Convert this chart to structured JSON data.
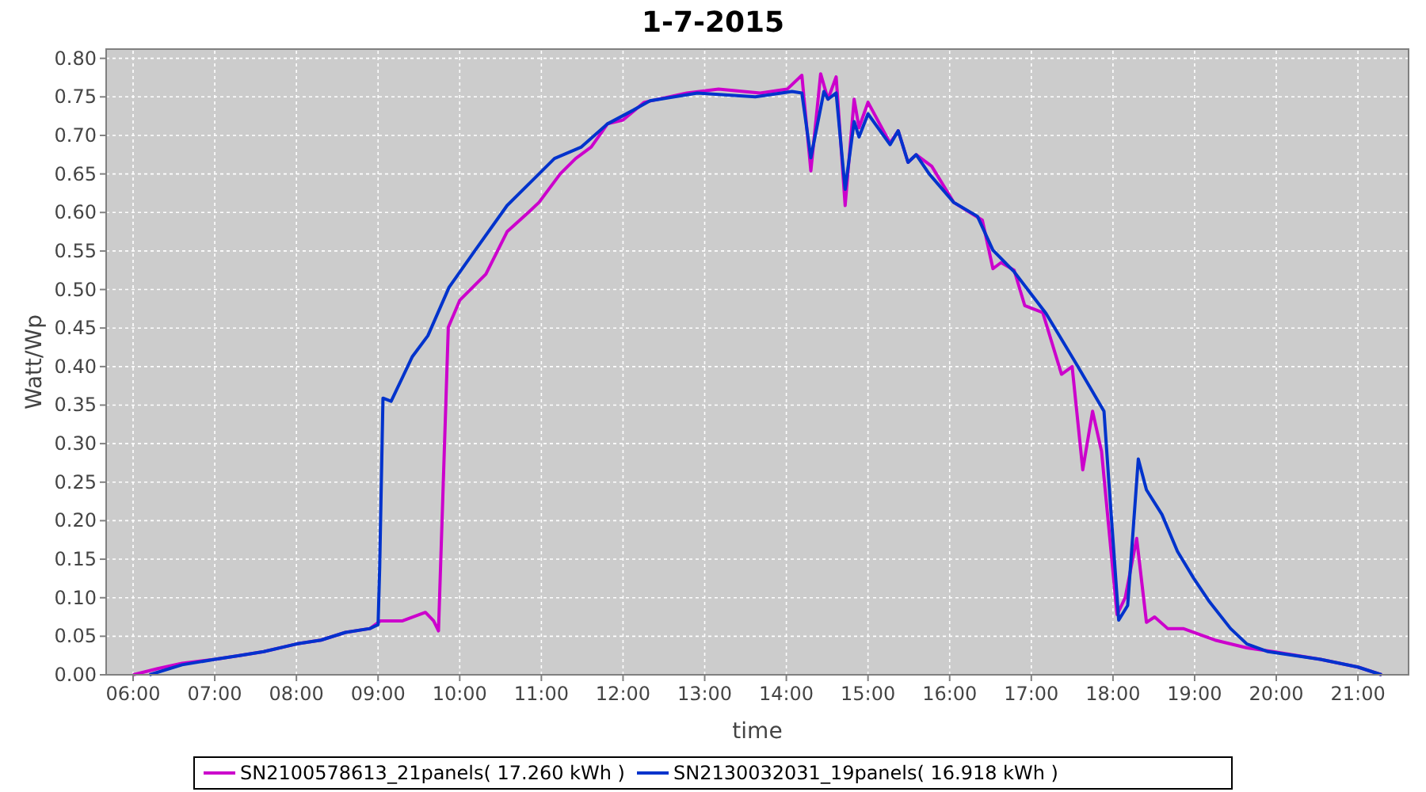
{
  "chart_data": {
    "type": "line",
    "title": "1-7-2015",
    "xlabel": "time",
    "ylabel": "Watt/Wp",
    "xlim": [
      5.67,
      21.62
    ],
    "ylim": [
      0,
      0.812
    ],
    "xticks": [
      {
        "value": 6,
        "label": "06:00"
      },
      {
        "value": 7,
        "label": "07:00"
      },
      {
        "value": 8,
        "label": "08:00"
      },
      {
        "value": 9,
        "label": "09:00"
      },
      {
        "value": 10,
        "label": "10:00"
      },
      {
        "value": 11,
        "label": "11:00"
      },
      {
        "value": 12,
        "label": "12:00"
      },
      {
        "value": 13,
        "label": "13:00"
      },
      {
        "value": 14,
        "label": "14:00"
      },
      {
        "value": 15,
        "label": "15:00"
      },
      {
        "value": 16,
        "label": "16:00"
      },
      {
        "value": 17,
        "label": "17:00"
      },
      {
        "value": 18,
        "label": "18:00"
      },
      {
        "value": 19,
        "label": "19:00"
      },
      {
        "value": 20,
        "label": "20:00"
      },
      {
        "value": 21,
        "label": "21:00"
      }
    ],
    "yticks": [
      {
        "value": 0,
        "label": "0.00"
      },
      {
        "value": 0.05,
        "label": "0.05"
      },
      {
        "value": 0.1,
        "label": "0.10"
      },
      {
        "value": 0.15,
        "label": "0.15"
      },
      {
        "value": 0.2,
        "label": "0.20"
      },
      {
        "value": 0.25,
        "label": "0.25"
      },
      {
        "value": 0.3,
        "label": "0.30"
      },
      {
        "value": 0.35,
        "label": "0.35"
      },
      {
        "value": 0.4,
        "label": "0.40"
      },
      {
        "value": 0.45,
        "label": "0.45"
      },
      {
        "value": 0.5,
        "label": "0.50"
      },
      {
        "value": 0.55,
        "label": "0.55"
      },
      {
        "value": 0.6,
        "label": "0.60"
      },
      {
        "value": 0.65,
        "label": "0.65"
      },
      {
        "value": 0.7,
        "label": "0.70"
      },
      {
        "value": 0.75,
        "label": "0.75"
      },
      {
        "value": 0.8,
        "label": "0.80"
      }
    ],
    "grid": true,
    "legend": "bottom",
    "line_style": "solid",
    "series": [
      {
        "name": "SN2100578613_21panels( 17.260 kWh )",
        "color": "#cc00cc",
        "x": [
          6.0,
          6.3,
          6.6,
          7.0,
          7.3,
          7.6,
          8.0,
          8.3,
          8.6,
          8.9,
          9.03,
          9.3,
          9.58,
          9.68,
          9.74,
          9.86,
          10.0,
          10.32,
          10.58,
          10.84,
          10.97,
          11.23,
          11.42,
          11.61,
          11.81,
          12.0,
          12.26,
          12.78,
          13.17,
          13.68,
          14.01,
          14.19,
          14.3,
          14.42,
          14.51,
          14.61,
          14.72,
          14.83,
          14.89,
          15.0,
          15.27,
          15.37,
          15.49,
          15.59,
          15.78,
          16.05,
          16.4,
          16.53,
          16.63,
          16.79,
          16.92,
          17.14,
          17.37,
          17.5,
          17.63,
          17.75,
          17.86,
          18.05,
          18.15,
          18.29,
          18.41,
          18.51,
          18.67,
          18.86,
          19.25,
          19.64,
          19.96,
          20.54,
          21.0,
          21.29
        ],
        "values": [
          0.0,
          0.008,
          0.015,
          0.02,
          0.025,
          0.03,
          0.04,
          0.045,
          0.055,
          0.06,
          0.07,
          0.07,
          0.081,
          0.07,
          0.057,
          0.451,
          0.486,
          0.52,
          0.575,
          0.6,
          0.613,
          0.65,
          0.67,
          0.685,
          0.715,
          0.72,
          0.743,
          0.755,
          0.76,
          0.755,
          0.76,
          0.778,
          0.654,
          0.78,
          0.747,
          0.776,
          0.609,
          0.747,
          0.71,
          0.743,
          0.69,
          0.706,
          0.665,
          0.675,
          0.66,
          0.613,
          0.59,
          0.527,
          0.535,
          0.525,
          0.479,
          0.47,
          0.39,
          0.4,
          0.266,
          0.342,
          0.29,
          0.078,
          0.1,
          0.177,
          0.068,
          0.075,
          0.06,
          0.06,
          0.045,
          0.035,
          0.03,
          0.02,
          0.01,
          0.0
        ]
      },
      {
        "name": "SN2130032031_19panels( 16.918 kWh )",
        "color": "#0033cc",
        "x": [
          6.2,
          6.6,
          7.0,
          7.3,
          7.6,
          8.0,
          8.3,
          8.6,
          8.9,
          9.0,
          9.02,
          9.06,
          9.16,
          9.42,
          9.61,
          9.87,
          10.19,
          10.58,
          10.97,
          11.16,
          11.49,
          11.81,
          12.13,
          12.33,
          12.91,
          13.62,
          14.07,
          14.19,
          14.3,
          14.46,
          14.51,
          14.61,
          14.72,
          14.83,
          14.89,
          15.0,
          15.27,
          15.37,
          15.49,
          15.59,
          15.75,
          16.05,
          16.34,
          16.53,
          16.79,
          17.18,
          17.57,
          17.89,
          17.95,
          18.07,
          18.18,
          18.31,
          18.41,
          18.6,
          18.79,
          18.99,
          19.18,
          19.44,
          19.64,
          19.9,
          20.54,
          21.0,
          21.29
        ],
        "values": [
          0.0,
          0.013,
          0.02,
          0.025,
          0.03,
          0.04,
          0.045,
          0.055,
          0.06,
          0.065,
          0.14,
          0.359,
          0.355,
          0.413,
          0.44,
          0.503,
          0.551,
          0.609,
          0.65,
          0.67,
          0.685,
          0.715,
          0.733,
          0.745,
          0.755,
          0.75,
          0.757,
          0.755,
          0.671,
          0.757,
          0.747,
          0.755,
          0.63,
          0.718,
          0.698,
          0.728,
          0.688,
          0.706,
          0.665,
          0.675,
          0.65,
          0.613,
          0.595,
          0.551,
          0.523,
          0.469,
          0.4,
          0.342,
          0.25,
          0.071,
          0.09,
          0.28,
          0.24,
          0.208,
          0.16,
          0.125,
          0.095,
          0.06,
          0.04,
          0.03,
          0.02,
          0.01,
          0.0
        ]
      }
    ]
  }
}
